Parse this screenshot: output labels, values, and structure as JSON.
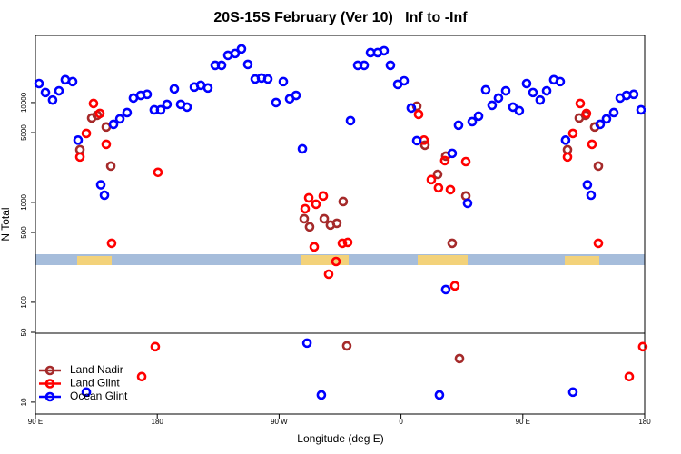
{
  "chart_data": {
    "type": "scatter",
    "title": "20S-15S February (Ver 10)   Inf to -Inf",
    "x_label": "Longitude (deg E)",
    "y_label": "N Total",
    "log_y": true,
    "legend": "bottom left",
    "xlim": [
      90,
      540
    ],
    "ylim": [
      7.6,
      47000
    ],
    "xticks": [
      {
        "value": 90,
        "label": "90 E"
      },
      {
        "value": 180,
        "label": "180"
      },
      {
        "value": 270,
        "label": "90 W"
      },
      {
        "value": 360,
        "label": "0"
      },
      {
        "value": 450,
        "label": "90 E"
      },
      {
        "value": 540,
        "label": "180"
      }
    ],
    "yticks": [
      10,
      50,
      100,
      500,
      1000,
      5000,
      10000
    ],
    "series": [
      {
        "name": "Land Nadir",
        "color": "#a52a2a",
        "x": [
          122.9,
          131.6,
          135.6,
          142.3,
          145.7,
          288.5,
          292.5,
          303.3,
          307.9,
          312.6,
          317.3,
          320.0,
          371.7,
          377.7,
          387.1,
          393.1,
          397.8,
          403.2,
          407.9,
          483.0,
          491.7,
          496.4,
          503.1,
          505.8
        ],
        "values": [
          3370,
          7000,
          7460,
          5690,
          2310,
          686,
          569,
          686,
          593,
          618,
          1020,
          36.6,
          9200,
          3740,
          1910,
          2910,
          390,
          27.3,
          1160,
          3370,
          7000,
          7460,
          5690,
          2310
        ]
      },
      {
        "name": "Land Glint",
        "color": "#ff0000",
        "x": [
          122.9,
          127.6,
          132.9,
          137.6,
          142.3,
          146.3,
          168.5,
          178.5,
          180.5,
          289.2,
          291.9,
          295.9,
          297.2,
          302.6,
          306.6,
          312.0,
          316.7,
          320.7,
          373.0,
          377.0,
          382.4,
          387.7,
          392.4,
          396.5,
          399.8,
          407.9,
          483.0,
          487.0,
          492.4,
          497.0,
          501.1,
          505.8,
          528.6,
          538.6
        ],
        "values": [
          2850,
          4910,
          9790,
          7780,
          3820,
          390,
          18,
          35.9,
          2000,
          863,
          1110,
          359,
          959,
          1160,
          191,
          256,
          390,
          398,
          7620,
          4200,
          1690,
          1400,
          2620,
          1340,
          146,
          2560,
          2850,
          4910,
          9790,
          7780,
          3820,
          390,
          18,
          35.9
        ]
      },
      {
        "name": "Ocean Glint",
        "color": "#0000ff",
        "x": [
          92.7,
          97.4,
          102.7,
          107.4,
          112.1,
          117.5,
          121.5,
          127.6,
          138.3,
          141.0,
          147.7,
          152.4,
          157.7,
          162.4,
          167.8,
          172.5,
          177.8,
          182.5,
          187.2,
          192.6,
          197.3,
          202.0,
          207.4,
          212.1,
          217.4,
          222.8,
          227.5,
          232.2,
          237.5,
          242.2,
          246.9,
          252.3,
          257.0,
          261.7,
          267.7,
          273.1,
          277.8,
          282.5,
          287.2,
          290.6,
          301.2,
          322.7,
          328.1,
          332.8,
          337.5,
          342.8,
          347.5,
          352.2,
          357.6,
          362.3,
          367.6,
          371.7,
          388.4,
          393.1,
          397.8,
          402.5,
          409.2,
          412.6,
          417.3,
          422.6,
          427.3,
          432.0,
          437.4,
          442.7,
          447.4,
          452.8,
          457.5,
          462.8,
          467.6,
          472.9,
          477.6,
          481.6,
          487.0,
          497.7,
          500.4,
          507.1,
          511.8,
          517.2,
          521.9,
          526.6,
          531.9,
          537.3
        ],
        "values": [
          15500,
          12600,
          10600,
          13100,
          16900,
          16200,
          4200,
          12.6,
          1500,
          1180,
          6050,
          6860,
          7940,
          11100,
          11800,
          12100,
          8450,
          8450,
          9590,
          13700,
          9590,
          9010,
          14300,
          14900,
          14000,
          23600,
          23600,
          29700,
          31000,
          34400,
          24100,
          17200,
          17600,
          17200,
          10000,
          16200,
          10900,
          11800,
          3440,
          39,
          11.8,
          6580,
          23600,
          23600,
          31600,
          31600,
          33000,
          23600,
          15200,
          16500,
          8820,
          4150,
          11.8,
          134,
          3100,
          5930,
          979,
          6440,
          7310,
          13400,
          9390,
          11100,
          13100,
          9010,
          8280,
          15500,
          12600,
          10600,
          13100,
          16900,
          16200,
          4200,
          12.6,
          1500,
          1180,
          6050,
          6860,
          7940,
          11100,
          11800,
          12100,
          8450
        ]
      }
    ]
  }
}
